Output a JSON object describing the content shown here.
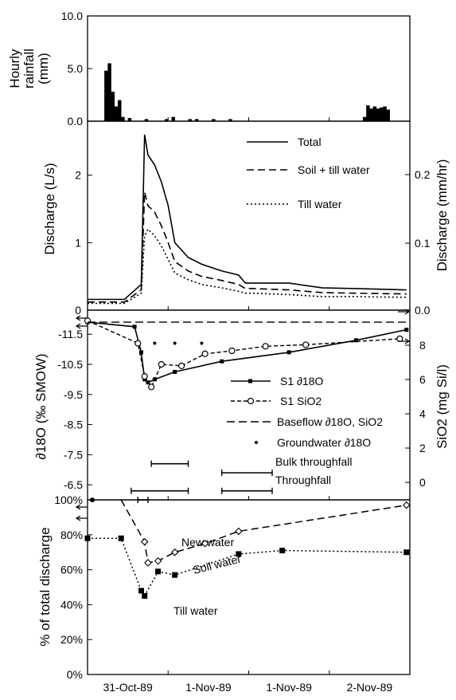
{
  "x_axis": {
    "tick_labels": [
      "31-Oct-89",
      "1-Nov-89",
      "1-Nov-89",
      "2-Nov-89"
    ],
    "range_hours": [
      0,
      96
    ]
  },
  "chart_data": [
    {
      "id": "rainfall",
      "type": "bar",
      "ylabel": "Hourly rainfall (mm)",
      "ylabel_lines": [
        "Hourly",
        "rainfall",
        "(mm)"
      ],
      "ylim": [
        0,
        10
      ],
      "yticks": [
        "0.0",
        "5.0",
        "10.0"
      ],
      "x": [
        5,
        6,
        7,
        8,
        9,
        10,
        12,
        17,
        23,
        25,
        30,
        32,
        37,
        42,
        82,
        83,
        84,
        85,
        86,
        87,
        88,
        89
      ],
      "values": [
        4.8,
        5.5,
        2.8,
        1.4,
        2.0,
        0.4,
        0.3,
        0.2,
        0.2,
        0.4,
        0.2,
        0.2,
        0.2,
        0.2,
        0.4,
        1.5,
        1.2,
        1.4,
        1.2,
        1.3,
        1.4,
        1.1
      ]
    },
    {
      "id": "discharge",
      "type": "line",
      "ylabel": "Discharge (L/s)",
      "ylabel_right": "Discharge (mm/hr)",
      "ylim": [
        0,
        2.8
      ],
      "yticks": [
        "0",
        "1",
        "2"
      ],
      "yticks_right": [
        "0.0",
        "0.1",
        "0.2"
      ],
      "series": [
        {
          "name": "Total",
          "dash": "solid",
          "x": [
            0,
            11,
            16,
            17,
            18,
            20,
            22,
            24,
            26,
            30,
            34,
            40,
            45,
            47,
            49,
            60,
            70,
            80,
            95
          ],
          "y": [
            0.16,
            0.16,
            0.38,
            2.6,
            2.3,
            2.15,
            1.9,
            1.55,
            1.0,
            0.78,
            0.68,
            0.58,
            0.52,
            0.4,
            0.4,
            0.4,
            0.33,
            0.32,
            0.3
          ]
        },
        {
          "name": "Soil + till water",
          "dash": "dash",
          "x": [
            0,
            11,
            16,
            17,
            18,
            20,
            22,
            24,
            26,
            30,
            34,
            40,
            45,
            47,
            49,
            60,
            70,
            80,
            95
          ],
          "y": [
            0.12,
            0.12,
            0.3,
            1.75,
            1.55,
            1.45,
            1.25,
            1.0,
            0.72,
            0.58,
            0.5,
            0.44,
            0.38,
            0.32,
            0.32,
            0.3,
            0.26,
            0.25,
            0.24
          ]
        },
        {
          "name": "Till water",
          "dash": "dot",
          "x": [
            0,
            11,
            16,
            17,
            18,
            20,
            22,
            24,
            26,
            30,
            34,
            40,
            45,
            47,
            49,
            60,
            70,
            80,
            95
          ],
          "y": [
            0.1,
            0.1,
            0.25,
            1.1,
            1.2,
            1.1,
            0.95,
            0.75,
            0.55,
            0.45,
            0.38,
            0.33,
            0.28,
            0.25,
            0.25,
            0.23,
            0.2,
            0.2,
            0.19
          ]
        }
      ]
    },
    {
      "id": "isotope",
      "type": "line",
      "ylabel": "∂18O (‰ SMOW)",
      "ylabel_right": "SiO2 (mg Si/l)",
      "ylim": [
        -6.0,
        -12.3
      ],
      "yticks": [
        "-11.5",
        "-10.5",
        "-9.5",
        "-8.5",
        "-7.5",
        "-6.5"
      ],
      "yticks_right": [
        "0",
        "2",
        "4",
        "6",
        "8"
      ],
      "series": [
        {
          "name": "S1 ∂18O",
          "marker": "filled-square",
          "x": [
            0,
            14,
            16,
            17,
            18,
            20,
            26,
            40,
            60,
            80,
            95
          ],
          "y": [
            -11.9,
            -11.75,
            -10.9,
            -10.0,
            -9.9,
            -10.0,
            -10.25,
            -10.6,
            -10.9,
            -11.3,
            -11.65
          ]
        },
        {
          "name": "S1 SiO2",
          "marker": "open-circle",
          "x": [
            0,
            15,
            17,
            19,
            22,
            28,
            35,
            43,
            53,
            65,
            93
          ],
          "y": [
            -11.95,
            -11.2,
            -10.1,
            -9.75,
            -10.5,
            -10.45,
            -10.85,
            -10.95,
            -11.1,
            -11.15,
            -11.35
          ]
        },
        {
          "name": "Baseflow ∂18O, SiO2",
          "dash": "dash",
          "x": [
            0,
            96
          ],
          "y": [
            -11.9,
            -11.9
          ]
        },
        {
          "name": "Groundwater ∂18O",
          "marker": "dot",
          "x": [
            20,
            26,
            34
          ],
          "y": [
            -11.2,
            -11.2,
            -11.2
          ]
        }
      ],
      "ranges": [
        {
          "name": "Bulk throughfall",
          "x": [
            19,
            30
          ],
          "y": -7.2
        },
        {
          "name": "Bulk throughfall",
          "x": [
            40,
            55
          ],
          "y": -6.9
        },
        {
          "name": "Throughfall",
          "x": [
            13,
            30
          ],
          "y": -6.3
        },
        {
          "name": "Throughfall",
          "x": [
            40,
            55
          ],
          "y": -6.3
        },
        {
          "name": "",
          "x": [
            15,
            18
          ],
          "y": -6.0
        }
      ]
    },
    {
      "id": "percent",
      "type": "line",
      "ylabel": "% of total discharge",
      "ylim": [
        0,
        100
      ],
      "yticks": [
        "0%",
        "20%",
        "40%",
        "60%",
        "80%",
        "100%"
      ],
      "series": [
        {
          "name": "New water / Soil water boundary",
          "marker": "open-diamond",
          "dash": "dash",
          "x": [
            10,
            17,
            18,
            21,
            26,
            35,
            45,
            95
          ],
          "y": [
            100,
            76,
            64,
            65,
            70,
            75,
            82,
            97
          ]
        },
        {
          "name": "Soil water / Till water boundary",
          "marker": "filled-square",
          "dash": "dot",
          "x": [
            0,
            10,
            16,
            17,
            21,
            26,
            45,
            58,
            95
          ],
          "y": [
            78,
            78,
            48,
            45,
            59,
            57,
            69,
            71,
            70
          ]
        }
      ],
      "annotations": [
        "New water",
        "Soil water",
        "Till water"
      ]
    }
  ]
}
